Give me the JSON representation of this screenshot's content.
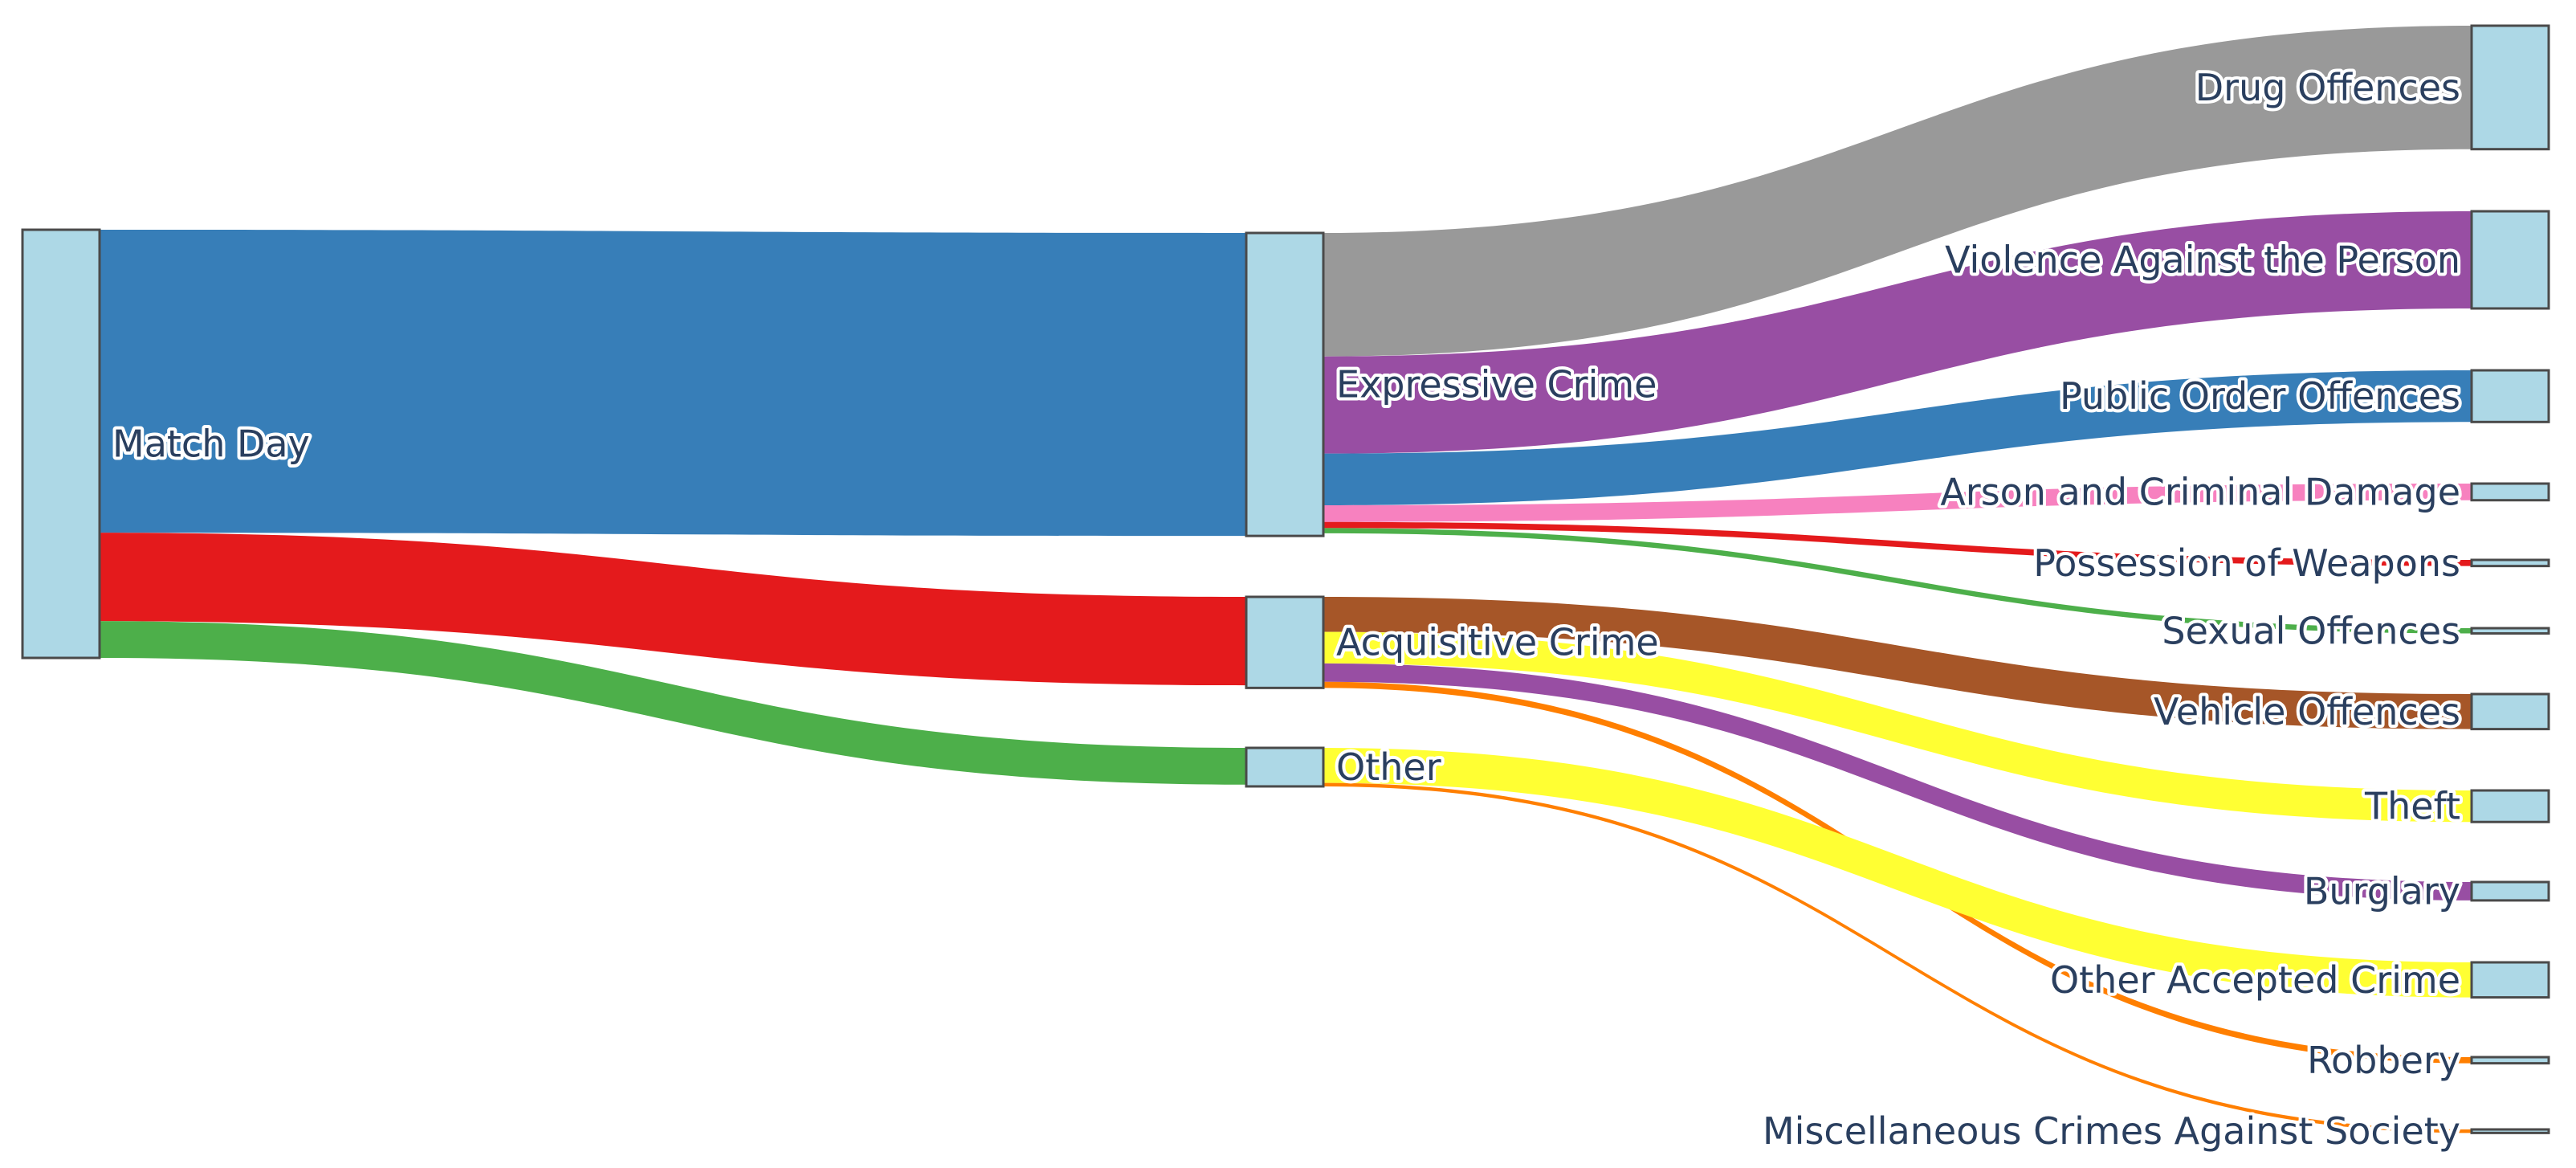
{
  "chart_data": {
    "type": "sankey",
    "title": "",
    "node_color": "#add8e6",
    "label_color": "#2a3f5f",
    "nodes": [
      {
        "id": "match_day",
        "label": "Match Day"
      },
      {
        "id": "expressive",
        "label": "Expressive Crime"
      },
      {
        "id": "acquisitive",
        "label": "Acquisitive Crime"
      },
      {
        "id": "other",
        "label": "Other"
      },
      {
        "id": "drug",
        "label": "Drug Offences"
      },
      {
        "id": "violence",
        "label": "Violence Against the Person"
      },
      {
        "id": "public_order",
        "label": "Public Order Offences"
      },
      {
        "id": "arson",
        "label": "Arson and Criminal Damage"
      },
      {
        "id": "weapons",
        "label": "Possession of Weapons"
      },
      {
        "id": "sexual",
        "label": "Sexual Offences"
      },
      {
        "id": "vehicle",
        "label": "Vehicle Offences"
      },
      {
        "id": "theft",
        "label": "Theft"
      },
      {
        "id": "burglary",
        "label": "Burglary"
      },
      {
        "id": "other_accepted",
        "label": "Other Accepted Crime"
      },
      {
        "id": "robbery",
        "label": "Robbery"
      },
      {
        "id": "misc",
        "label": "Miscellaneous Crimes Against Society"
      }
    ],
    "links": [
      {
        "source": "match_day",
        "target": "expressive",
        "value": 346,
        "color": "#377eb8"
      },
      {
        "source": "match_day",
        "target": "acquisitive",
        "value": 101,
        "color": "#e41a1c"
      },
      {
        "source": "match_day",
        "target": "other",
        "value": 42,
        "color": "#4daf4a"
      },
      {
        "source": "expressive",
        "target": "drug",
        "value": 141,
        "color": "#999999"
      },
      {
        "source": "expressive",
        "target": "violence",
        "value": 111,
        "color": "#984ea3"
      },
      {
        "source": "expressive",
        "target": "public_order",
        "value": 59,
        "color": "#377eb8"
      },
      {
        "source": "expressive",
        "target": "arson",
        "value": 19,
        "color": "#f781bf"
      },
      {
        "source": "expressive",
        "target": "weapons",
        "value": 7,
        "color": "#e41a1c"
      },
      {
        "source": "expressive",
        "target": "sexual",
        "value": 6,
        "color": "#4daf4a"
      },
      {
        "source": "acquisitive",
        "target": "vehicle",
        "value": 40,
        "color": "#a65628"
      },
      {
        "source": "acquisitive",
        "target": "theft",
        "value": 36,
        "color": "#ffff33"
      },
      {
        "source": "acquisitive",
        "target": "burglary",
        "value": 21,
        "color": "#984ea3"
      },
      {
        "source": "acquisitive",
        "target": "robbery",
        "value": 7,
        "color": "#ff7f00"
      },
      {
        "source": "other",
        "target": "other_accepted",
        "value": 40,
        "color": "#ffff33"
      },
      {
        "source": "other",
        "target": "misc",
        "value": 4,
        "color": "#ff7f00"
      }
    ]
  }
}
